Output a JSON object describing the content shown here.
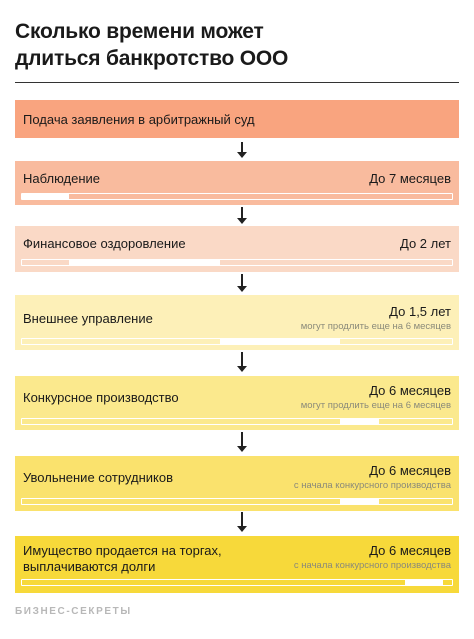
{
  "title": {
    "line1": "Сколько времени может",
    "line2": "длиться банкротство ООО"
  },
  "stages": [
    {
      "label": "Подача заявления в арбитражный суд",
      "color": "#f9a47f"
    },
    {
      "label": "Наблюдение",
      "duration": "До 7 месяцев",
      "color": "#f9bb9e",
      "bar": {
        "start": 0,
        "end": 0.11
      }
    },
    {
      "label": "Финансовое оздоровление",
      "duration": "До 2 лет",
      "color": "#fad9c6",
      "bar": {
        "start": 0.11,
        "end": 0.46
      }
    },
    {
      "label": "Внешнее управление",
      "duration": "До 1,5 лет",
      "note": "могут продлить еще на 6 месяцев",
      "color": "#fdf0b8",
      "bar": {
        "start": 0.46,
        "end": 0.74
      }
    },
    {
      "label": "Конкурсное производство",
      "duration": "До 6 месяцев",
      "note": "могут продлить еще на 6 месяцев",
      "color": "#fbe98d",
      "bar": {
        "start": 0.74,
        "end": 0.83
      }
    },
    {
      "label": "Увольнение сотрудников",
      "duration": "До 6 месяцев",
      "note": "с начала конкурсного производства",
      "color": "#fae26d",
      "bar": {
        "start": 0.74,
        "end": 0.83
      }
    },
    {
      "label_line1": "Имущество продается на торгах,",
      "label_line2": "выплачиваются долги",
      "duration": "До 6 месяцев",
      "note": "с начала конкурсного производства",
      "color": "#f7d93a",
      "bar": {
        "start": 0.89,
        "end": 0.98
      }
    }
  ],
  "footer": "БИЗНЕС-СЕКРЕТЫ"
}
